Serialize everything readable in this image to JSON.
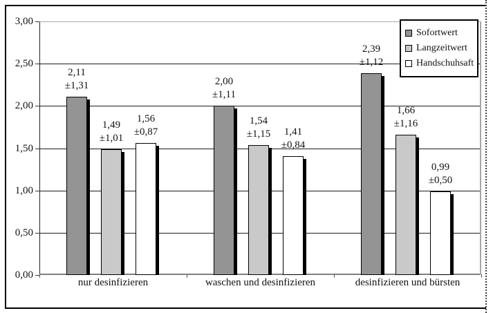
{
  "chart_data": {
    "type": "bar",
    "title": "",
    "xlabel": "",
    "ylabel": "",
    "categories": [
      "nur desinfizieren",
      "waschen und desinfizieren",
      "desinfizieren und bürsten"
    ],
    "series": [
      {
        "name": "Sofortwert",
        "color": "#949494",
        "values": [
          2.11,
          2.0,
          2.39
        ],
        "value_labels": [
          "2,11",
          "2,00",
          "2,39"
        ],
        "error_labels": [
          "±1,31",
          "±1,11",
          "±1,12"
        ]
      },
      {
        "name": "Langzeitwert",
        "color": "#c9c9c9",
        "values": [
          1.49,
          1.54,
          1.66
        ],
        "value_labels": [
          "1,49",
          "1,54",
          "1,66"
        ],
        "error_labels": [
          "±1,01",
          "±1,15",
          "±1,16"
        ]
      },
      {
        "name": "Handschuhsaft",
        "color": "#ffffff",
        "values": [
          1.56,
          1.41,
          0.99
        ],
        "value_labels": [
          "1,56",
          "1,41",
          "0,99"
        ],
        "error_labels": [
          "±0,87",
          "±0,84",
          "±0,50"
        ]
      }
    ],
    "ylim": [
      0,
      3
    ],
    "ytick_step": 0.5,
    "ytick_labels": [
      "0,00",
      "0,50",
      "1,00",
      "1,50",
      "2,00",
      "2,50",
      "3,00"
    ],
    "grid": true,
    "legend_position": "top-right",
    "colors": {
      "gridline": "#1c1c1c",
      "top_gridline": "#a9a9a9",
      "axis": "#7f7f7f",
      "bar_shadow": "#000000"
    }
  }
}
